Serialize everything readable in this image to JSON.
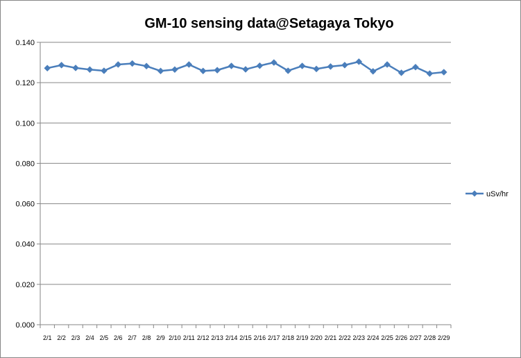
{
  "chart_data": {
    "type": "line",
    "title": "GM-10 sensing data@Setagaya Tokyo",
    "xlabel": "",
    "ylabel": "",
    "ylim": [
      0,
      0.14
    ],
    "yticks": [
      "0.000",
      "0.020",
      "0.040",
      "0.060",
      "0.080",
      "0.100",
      "0.120",
      "0.140"
    ],
    "grid": true,
    "legend_position": "right",
    "categories": [
      "2/1",
      "2/2",
      "2/3",
      "2/4",
      "2/5",
      "2/6",
      "2/7",
      "2/8",
      "2/9",
      "2/10",
      "2/11",
      "2/12",
      "2/13",
      "2/14",
      "2/15",
      "2/16",
      "2/17",
      "2/18",
      "2/19",
      "2/20",
      "2/21",
      "2/22",
      "2/23",
      "2/24",
      "2/25",
      "2/26",
      "2/27",
      "2/28",
      "2/29"
    ],
    "series": [
      {
        "name": "uSv/hr",
        "color": "#4a7ebb",
        "values": [
          0.1272,
          0.1287,
          0.1273,
          0.1265,
          0.1259,
          0.129,
          0.1295,
          0.1282,
          0.1258,
          0.1265,
          0.129,
          0.1258,
          0.1262,
          0.1283,
          0.1266,
          0.1284,
          0.13,
          0.1259,
          0.1283,
          0.1268,
          0.128,
          0.1287,
          0.1304,
          0.1256,
          0.129,
          0.1249,
          0.1277,
          0.1245,
          0.1252
        ]
      }
    ]
  }
}
